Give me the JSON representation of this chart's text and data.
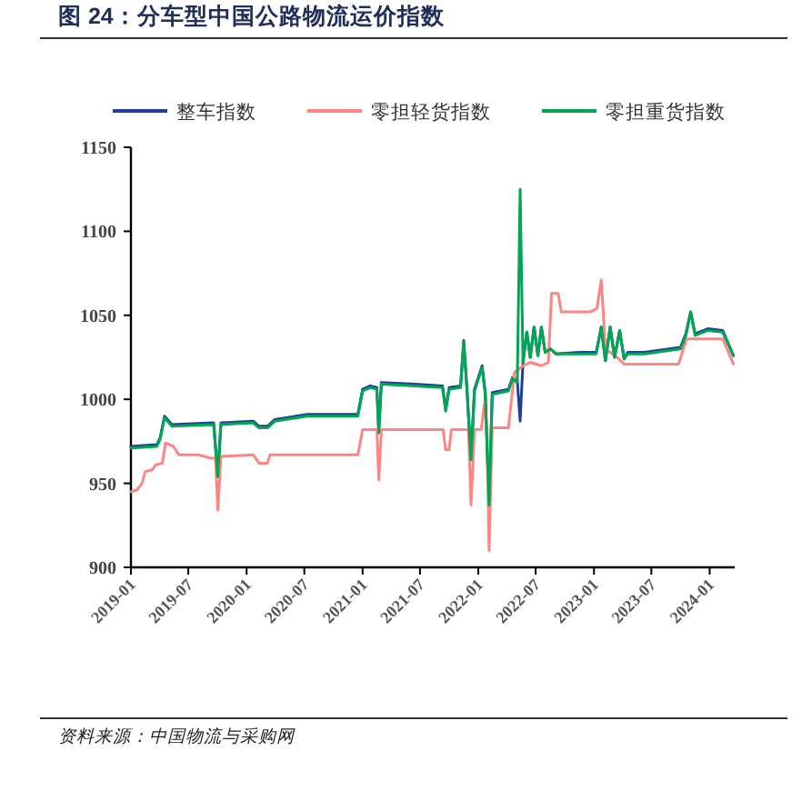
{
  "chart_data": {
    "type": "line",
    "title": "图 24：分车型中国公路物流运价指数",
    "annotations": [
      "资料来源：中国物流与采购网"
    ],
    "xlim": [
      "2019-01-01",
      "2024-03-20"
    ],
    "xticks": [
      {
        "value": "2019-01-01",
        "label": "2019-01"
      },
      {
        "value": "2019-07-01",
        "label": "2019-07"
      },
      {
        "value": "2020-01-01",
        "label": "2020-01"
      },
      {
        "value": "2020-07-01",
        "label": "2020-07"
      },
      {
        "value": "2021-01-01",
        "label": "2021-01"
      },
      {
        "value": "2021-07-01",
        "label": "2021-07"
      },
      {
        "value": "2022-01-01",
        "label": "2022-01"
      },
      {
        "value": "2022-07-01",
        "label": "2022-07"
      },
      {
        "value": "2023-01-01",
        "label": "2023-01"
      },
      {
        "value": "2023-07-01",
        "label": "2023-07"
      },
      {
        "value": "2024-01-01",
        "label": "2024-01"
      }
    ],
    "ylim": [
      900,
      1150
    ],
    "yticks": [
      900,
      950,
      1000,
      1050,
      1100,
      1150
    ],
    "legend": "top",
    "grid": false,
    "series": [
      {
        "name": "整车指数",
        "color": "#1f3f99",
        "x": [
          "2019-01-01",
          "2019-03-24",
          "2019-04-03",
          "2019-04-17",
          "2019-05-10",
          "2019-09-19",
          "2019-10-02",
          "2019-10-12",
          "2020-01-22",
          "2020-02-09",
          "2020-03-07",
          "2020-03-30",
          "2020-07-10",
          "2020-12-17",
          "2021-01-01",
          "2021-01-25",
          "2021-02-15",
          "2021-02-21",
          "2021-03-01",
          "2021-06-15",
          "2021-09-10",
          "2021-09-20",
          "2021-10-01",
          "2021-11-06",
          "2021-11-16",
          "2021-11-26",
          "2021-12-09",
          "2021-12-20",
          "2022-01-13",
          "2022-01-23",
          "2022-02-04",
          "2022-02-14",
          "2022-04-06",
          "2022-04-19",
          "2022-05-04",
          "2022-05-13",
          "2022-05-22",
          "2022-06-03",
          "2022-06-14",
          "2022-06-26",
          "2022-07-08",
          "2022-07-19",
          "2022-07-31",
          "2022-08-17",
          "2022-09-04",
          "2022-11-14",
          "2023-01-08",
          "2023-01-24",
          "2023-02-06",
          "2023-02-21",
          "2023-03-07",
          "2023-03-23",
          "2023-04-06",
          "2023-04-17",
          "2023-06-09",
          "2023-10-01",
          "2023-10-18",
          "2023-11-02",
          "2023-11-16",
          "2023-12-26",
          "2024-02-11",
          "2024-03-16"
        ],
        "values": [
          972,
          973,
          977,
          990,
          985,
          986,
          955,
          986,
          987,
          984,
          984,
          988,
          991,
          991,
          1006,
          1008,
          1007,
          981,
          1010,
          1009,
          1008,
          994,
          1007,
          1008,
          1035,
          1007,
          965,
          1006,
          1020,
          1004,
          938,
          1004,
          1006,
          1013,
          1011,
          987,
          1022,
          1040,
          1025,
          1043,
          1026,
          1043,
          1028,
          1030,
          1027,
          1028,
          1028,
          1043,
          1023,
          1043,
          1025,
          1041,
          1024,
          1028,
          1028,
          1031,
          1039,
          1052,
          1039,
          1042,
          1041,
          1026
        ]
      },
      {
        "name": "零担轻货指数",
        "color": "#ff8585",
        "x": [
          "2019-01-01",
          "2019-01-20",
          "2019-02-05",
          "2019-02-15",
          "2019-03-10",
          "2019-03-20",
          "2019-04-10",
          "2019-04-20",
          "2019-05-15",
          "2019-06-01",
          "2019-08-01",
          "2019-09-10",
          "2019-09-25",
          "2019-10-02",
          "2019-10-12",
          "2020-01-22",
          "2020-02-09",
          "2020-03-07",
          "2020-03-15",
          "2020-12-17",
          "2021-01-01",
          "2021-02-15",
          "2021-02-21",
          "2021-03-01",
          "2021-09-12",
          "2021-09-20",
          "2021-10-01",
          "2021-10-08",
          "2021-12-01",
          "2021-12-09",
          "2021-12-20",
          "2022-01-10",
          "2022-01-20",
          "2022-01-28",
          "2022-02-04",
          "2022-02-14",
          "2022-04-06",
          "2022-04-25",
          "2022-05-22",
          "2022-06-14",
          "2022-07-19",
          "2022-08-10",
          "2022-08-20",
          "2022-09-10",
          "2022-09-20",
          "2022-12-20",
          "2023-01-10",
          "2023-01-24",
          "2023-02-06",
          "2023-03-15",
          "2023-04-06",
          "2023-09-25",
          "2023-10-20",
          "2024-02-11",
          "2024-03-16"
        ],
        "values": [
          945,
          946,
          950,
          957,
          958,
          961,
          962,
          974,
          972,
          967,
          967,
          965,
          965,
          934,
          966,
          967,
          962,
          962,
          967,
          967,
          982,
          982,
          952,
          982,
          982,
          970,
          970,
          982,
          982,
          937,
          982,
          982,
          997,
          982,
          910,
          983,
          983,
          1016,
          1020,
          1022,
          1020,
          1022,
          1063,
          1063,
          1052,
          1052,
          1054,
          1071,
          1030,
          1025,
          1021,
          1021,
          1036,
          1036,
          1021
        ]
      },
      {
        "name": "零担重货指数",
        "color": "#00a651",
        "x": [
          "2019-01-01",
          "2019-03-24",
          "2019-04-03",
          "2019-04-17",
          "2019-05-10",
          "2019-09-19",
          "2019-10-02",
          "2019-10-12",
          "2020-01-22",
          "2020-02-09",
          "2020-03-07",
          "2020-03-30",
          "2020-07-10",
          "2020-12-17",
          "2021-01-01",
          "2021-01-25",
          "2021-02-15",
          "2021-02-21",
          "2021-03-01",
          "2021-06-15",
          "2021-09-10",
          "2021-09-20",
          "2021-10-01",
          "2021-11-06",
          "2021-11-16",
          "2021-11-26",
          "2021-12-09",
          "2021-12-20",
          "2022-01-13",
          "2022-01-23",
          "2022-02-04",
          "2022-02-14",
          "2022-04-06",
          "2022-04-19",
          "2022-05-04",
          "2022-05-13",
          "2022-05-22",
          "2022-06-03",
          "2022-06-14",
          "2022-06-26",
          "2022-07-08",
          "2022-07-19",
          "2022-07-31",
          "2022-08-17",
          "2022-09-04",
          "2022-11-14",
          "2023-01-08",
          "2023-01-24",
          "2023-02-06",
          "2023-02-21",
          "2023-03-07",
          "2023-03-23",
          "2023-04-06",
          "2023-04-17",
          "2023-06-09",
          "2023-10-01",
          "2023-10-18",
          "2023-11-02",
          "2023-11-16",
          "2023-12-26",
          "2024-02-11",
          "2024-03-16"
        ],
        "values": [
          971,
          972,
          976,
          989,
          984,
          985,
          954,
          985,
          986,
          983,
          983,
          987,
          990,
          990,
          1005,
          1007,
          1006,
          980,
          1009,
          1008,
          1007,
          993,
          1006,
          1007,
          1034,
          1006,
          964,
          1005,
          1019,
          1003,
          937,
          1003,
          1005,
          1012,
          1010,
          1125,
          1022,
          1040,
          1025,
          1043,
          1026,
          1043,
          1028,
          1030,
          1027,
          1027,
          1027,
          1043,
          1023,
          1043,
          1025,
          1041,
          1024,
          1027,
          1027,
          1030,
          1038,
          1052,
          1038,
          1041,
          1040,
          1026
        ]
      }
    ]
  }
}
